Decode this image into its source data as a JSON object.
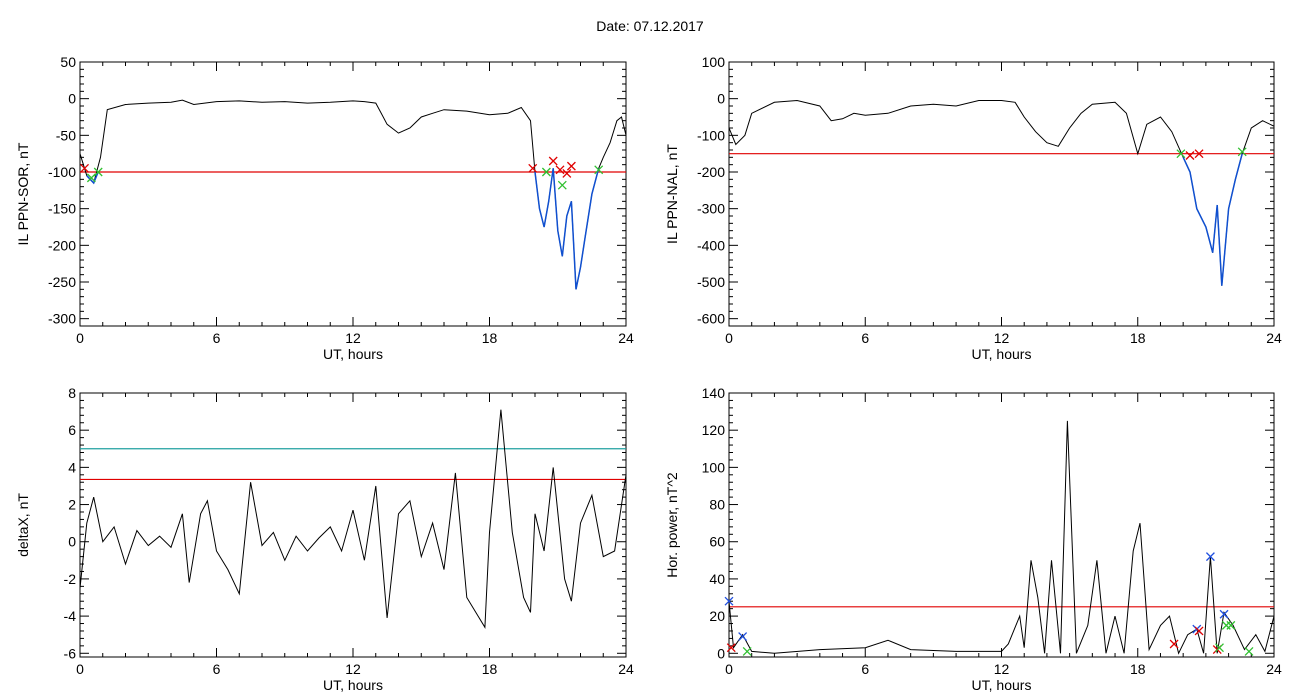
{
  "header": {
    "date_label": "Date:",
    "date_value": "07.12.2017"
  },
  "colors": {
    "trace": "#000000",
    "threshold": "#e00000",
    "cyan_threshold": "#20a0a0",
    "blue_segment": "#1050d0",
    "green_marker": "#30c030",
    "red_marker": "#e00000",
    "blue_marker": "#2050e0"
  },
  "chart_data": [
    {
      "id": "sor",
      "type": "line",
      "xlabel": "UT, hours",
      "ylabel": "IL PPN-SOR, nT",
      "xlim": [
        0,
        24
      ],
      "ylim": [
        -310,
        50
      ],
      "xticks": [
        0,
        6,
        12,
        18,
        24
      ],
      "yticks": [
        50,
        0,
        -50,
        -100,
        -150,
        -200,
        -250,
        -300
      ],
      "thresholds": [
        {
          "value": -100,
          "color": "red"
        }
      ],
      "points": [
        [
          0,
          -75
        ],
        [
          0.3,
          -105
        ],
        [
          0.6,
          -115
        ],
        [
          0.9,
          -80
        ],
        [
          1.2,
          -15
        ],
        [
          2,
          -8
        ],
        [
          3,
          -6
        ],
        [
          4,
          -5
        ],
        [
          4.5,
          -2
        ],
        [
          5,
          -8
        ],
        [
          6,
          -4
        ],
        [
          7,
          -3
        ],
        [
          8,
          -5
        ],
        [
          9,
          -4
        ],
        [
          10,
          -6
        ],
        [
          11,
          -5
        ],
        [
          12,
          -3
        ],
        [
          12.5,
          -4
        ],
        [
          13,
          -6
        ],
        [
          13.5,
          -35
        ],
        [
          14,
          -47
        ],
        [
          14.5,
          -40
        ],
        [
          15,
          -25
        ],
        [
          15.5,
          -20
        ],
        [
          16,
          -15
        ],
        [
          17,
          -17
        ],
        [
          18,
          -22
        ],
        [
          18.8,
          -20
        ],
        [
          19.4,
          -12
        ],
        [
          19.8,
          -30
        ],
        [
          20,
          -100
        ],
        [
          20.2,
          -150
        ],
        [
          20.4,
          -175
        ],
        [
          20.6,
          -140
        ],
        [
          20.8,
          -95
        ],
        [
          21,
          -180
        ],
        [
          21.2,
          -215
        ],
        [
          21.4,
          -160
        ],
        [
          21.6,
          -140
        ],
        [
          21.8,
          -260
        ],
        [
          22,
          -230
        ],
        [
          22.2,
          -190
        ],
        [
          22.5,
          -130
        ],
        [
          22.8,
          -95
        ],
        [
          23,
          -80
        ],
        [
          23.3,
          -60
        ],
        [
          23.6,
          -30
        ],
        [
          23.8,
          -25
        ],
        [
          24,
          -50
        ]
      ],
      "blue_segments": [
        [
          [
            20,
            -100
          ],
          [
            20.2,
            -150
          ],
          [
            20.4,
            -175
          ],
          [
            20.6,
            -140
          ],
          [
            20.8,
            -95
          ],
          [
            21,
            -180
          ],
          [
            21.2,
            -215
          ],
          [
            21.4,
            -160
          ],
          [
            21.6,
            -140
          ],
          [
            21.8,
            -260
          ],
          [
            22,
            -230
          ],
          [
            22.2,
            -190
          ],
          [
            22.5,
            -130
          ],
          [
            22.8,
            -95
          ]
        ],
        [
          [
            0.3,
            -105
          ],
          [
            0.6,
            -115
          ],
          [
            0.8,
            -100
          ]
        ]
      ],
      "markers": [
        {
          "x": 0.2,
          "y": -95,
          "symbol": "x",
          "color": "red"
        },
        {
          "x": 0.5,
          "y": -108,
          "symbol": "x",
          "color": "green"
        },
        {
          "x": 0.8,
          "y": -100,
          "symbol": "x",
          "color": "green"
        },
        {
          "x": 19.9,
          "y": -95,
          "symbol": "x",
          "color": "red"
        },
        {
          "x": 20.5,
          "y": -100,
          "symbol": "x",
          "color": "green"
        },
        {
          "x": 20.8,
          "y": -85,
          "symbol": "x",
          "color": "red"
        },
        {
          "x": 21.1,
          "y": -97,
          "symbol": "x",
          "color": "red"
        },
        {
          "x": 21.4,
          "y": -102,
          "symbol": "x",
          "color": "red"
        },
        {
          "x": 21.6,
          "y": -92,
          "symbol": "x",
          "color": "red"
        },
        {
          "x": 21.2,
          "y": -118,
          "symbol": "x",
          "color": "green"
        },
        {
          "x": 22.8,
          "y": -97,
          "symbol": "x",
          "color": "green"
        }
      ]
    },
    {
      "id": "nal",
      "type": "line",
      "xlabel": "UT, hours",
      "ylabel": "IL PPN-NAL, nT",
      "xlim": [
        0,
        24
      ],
      "ylim": [
        -620,
        100
      ],
      "xticks": [
        0,
        6,
        12,
        18,
        24
      ],
      "yticks": [
        100,
        0,
        -100,
        -200,
        -300,
        -400,
        -500,
        -600
      ],
      "thresholds": [
        {
          "value": -150,
          "color": "red"
        }
      ],
      "points": [
        [
          0,
          -80
        ],
        [
          0.3,
          -125
        ],
        [
          0.7,
          -100
        ],
        [
          1,
          -40
        ],
        [
          2,
          -10
        ],
        [
          3,
          -5
        ],
        [
          4,
          -20
        ],
        [
          4.5,
          -60
        ],
        [
          5,
          -55
        ],
        [
          5.5,
          -40
        ],
        [
          6,
          -45
        ],
        [
          7,
          -40
        ],
        [
          8,
          -20
        ],
        [
          9,
          -15
        ],
        [
          10,
          -20
        ],
        [
          11,
          -5
        ],
        [
          12,
          -5
        ],
        [
          12.6,
          -10
        ],
        [
          13,
          -50
        ],
        [
          13.5,
          -90
        ],
        [
          14,
          -120
        ],
        [
          14.5,
          -130
        ],
        [
          15,
          -80
        ],
        [
          15.5,
          -40
        ],
        [
          16,
          -15
        ],
        [
          17,
          -10
        ],
        [
          17.5,
          -40
        ],
        [
          18,
          -150
        ],
        [
          18.4,
          -70
        ],
        [
          19,
          -50
        ],
        [
          19.5,
          -90
        ],
        [
          20,
          -160
        ],
        [
          20.3,
          -200
        ],
        [
          20.6,
          -300
        ],
        [
          21,
          -350
        ],
        [
          21.3,
          -420
        ],
        [
          21.5,
          -290
        ],
        [
          21.7,
          -510
        ],
        [
          22,
          -300
        ],
        [
          22.3,
          -220
        ],
        [
          22.6,
          -150
        ],
        [
          23,
          -80
        ],
        [
          23.5,
          -60
        ],
        [
          24,
          -75
        ]
      ],
      "blue_segments": [
        [
          [
            20,
            -160
          ],
          [
            20.3,
            -200
          ],
          [
            20.6,
            -300
          ],
          [
            21,
            -350
          ],
          [
            21.3,
            -420
          ],
          [
            21.5,
            -290
          ],
          [
            21.7,
            -510
          ],
          [
            22,
            -300
          ],
          [
            22.3,
            -220
          ],
          [
            22.6,
            -150
          ]
        ]
      ],
      "markers": [
        {
          "x": 19.9,
          "y": -150,
          "symbol": "x",
          "color": "green"
        },
        {
          "x": 20.3,
          "y": -155,
          "symbol": "x",
          "color": "red"
        },
        {
          "x": 20.7,
          "y": -150,
          "symbol": "x",
          "color": "red"
        },
        {
          "x": 22.6,
          "y": -145,
          "symbol": "x",
          "color": "green"
        }
      ]
    },
    {
      "id": "deltax",
      "type": "line",
      "xlabel": "UT, hours",
      "ylabel": "deltaX, nT",
      "xlim": [
        0,
        24
      ],
      "ylim": [
        -6.2,
        8
      ],
      "xticks": [
        0,
        6,
        12,
        18,
        24
      ],
      "yticks": [
        8,
        6,
        4,
        2,
        0,
        -2,
        -4,
        -6
      ],
      "thresholds": [
        {
          "value": 5,
          "color": "cyan"
        },
        {
          "value": 3.35,
          "color": "red"
        }
      ],
      "points": [
        [
          0,
          -2.5
        ],
        [
          0.3,
          1
        ],
        [
          0.6,
          2.4
        ],
        [
          1,
          0
        ],
        [
          1.5,
          0.8
        ],
        [
          2,
          -1.2
        ],
        [
          2.5,
          0.6
        ],
        [
          3,
          -0.2
        ],
        [
          3.5,
          0.3
        ],
        [
          4,
          -0.3
        ],
        [
          4.5,
          1.5
        ],
        [
          4.8,
          -2.2
        ],
        [
          5.3,
          1.5
        ],
        [
          5.6,
          2.2
        ],
        [
          6,
          -0.5
        ],
        [
          6.5,
          -1.5
        ],
        [
          7,
          -2.8
        ],
        [
          7.5,
          3.2
        ],
        [
          8,
          -0.2
        ],
        [
          8.5,
          0.5
        ],
        [
          9,
          -1
        ],
        [
          9.5,
          0.3
        ],
        [
          10,
          -0.5
        ],
        [
          10.5,
          0.2
        ],
        [
          11,
          0.8
        ],
        [
          11.5,
          -0.5
        ],
        [
          12,
          1.7
        ],
        [
          12.5,
          -1
        ],
        [
          13,
          3
        ],
        [
          13.5,
          -4.1
        ],
        [
          14,
          1.5
        ],
        [
          14.5,
          2.2
        ],
        [
          15,
          -0.8
        ],
        [
          15.5,
          1
        ],
        [
          16,
          -1.5
        ],
        [
          16.5,
          3.7
        ],
        [
          17,
          -3
        ],
        [
          17.5,
          -4
        ],
        [
          17.8,
          -4.6
        ],
        [
          18,
          0.5
        ],
        [
          18.5,
          7.1
        ],
        [
          19,
          0.5
        ],
        [
          19.5,
          -3
        ],
        [
          19.8,
          -3.8
        ],
        [
          20,
          1.5
        ],
        [
          20.4,
          -0.5
        ],
        [
          20.8,
          4
        ],
        [
          21.3,
          -2
        ],
        [
          21.6,
          -3.2
        ],
        [
          22,
          1
        ],
        [
          22.5,
          2.5
        ],
        [
          23,
          -0.8
        ],
        [
          23.5,
          -0.5
        ],
        [
          24,
          3.6
        ]
      ],
      "markers": []
    },
    {
      "id": "power",
      "type": "line",
      "xlabel": "UT, hours",
      "ylabel": "Hor. power, nT^2",
      "xlim": [
        0,
        24
      ],
      "ylim": [
        -2,
        140
      ],
      "xticks": [
        0,
        6,
        12,
        18,
        24
      ],
      "yticks": [
        140,
        120,
        100,
        80,
        60,
        40,
        20,
        0
      ],
      "thresholds": [
        {
          "value": 25,
          "color": "red"
        }
      ],
      "points": [
        [
          0,
          28
        ],
        [
          0.2,
          3
        ],
        [
          0.6,
          10
        ],
        [
          1,
          1
        ],
        [
          2,
          0
        ],
        [
          4,
          2
        ],
        [
          6,
          3
        ],
        [
          7,
          7
        ],
        [
          8,
          2
        ],
        [
          10,
          1
        ],
        [
          12,
          1
        ],
        [
          12.3,
          5
        ],
        [
          12.8,
          20
        ],
        [
          13,
          3
        ],
        [
          13.3,
          50
        ],
        [
          13.6,
          30
        ],
        [
          13.9,
          0
        ],
        [
          14.2,
          50
        ],
        [
          14.6,
          0
        ],
        [
          14.9,
          125
        ],
        [
          15.3,
          0
        ],
        [
          15.8,
          15
        ],
        [
          16.2,
          50
        ],
        [
          16.6,
          0
        ],
        [
          17,
          20
        ],
        [
          17.4,
          0
        ],
        [
          17.8,
          55
        ],
        [
          18.1,
          70
        ],
        [
          18.5,
          2
        ],
        [
          19,
          15
        ],
        [
          19.4,
          20
        ],
        [
          19.8,
          0
        ],
        [
          20.2,
          10
        ],
        [
          20.6,
          13
        ],
        [
          20.9,
          0
        ],
        [
          21.2,
          52
        ],
        [
          21.5,
          0
        ],
        [
          21.8,
          22
        ],
        [
          22.2,
          15
        ],
        [
          22.7,
          2
        ],
        [
          23.2,
          10
        ],
        [
          23.6,
          1
        ],
        [
          24,
          20
        ]
      ],
      "markers": [
        {
          "x": 0,
          "y": 28,
          "symbol": "x",
          "color": "blue"
        },
        {
          "x": 0.1,
          "y": 3,
          "symbol": "x",
          "color": "red"
        },
        {
          "x": 0.6,
          "y": 9,
          "symbol": "x",
          "color": "blue"
        },
        {
          "x": 0.8,
          "y": 1,
          "symbol": "x",
          "color": "green"
        },
        {
          "x": 19.6,
          "y": 5,
          "symbol": "x",
          "color": "red"
        },
        {
          "x": 20.6,
          "y": 13,
          "symbol": "x",
          "color": "blue"
        },
        {
          "x": 20.7,
          "y": 12,
          "symbol": "x",
          "color": "red"
        },
        {
          "x": 21.2,
          "y": 52,
          "symbol": "x",
          "color": "blue"
        },
        {
          "x": 21.5,
          "y": 2,
          "symbol": "x",
          "color": "red"
        },
        {
          "x": 21.6,
          "y": 3,
          "symbol": "x",
          "color": "green"
        },
        {
          "x": 21.8,
          "y": 21,
          "symbol": "x",
          "color": "blue"
        },
        {
          "x": 21.9,
          "y": 15,
          "symbol": "x",
          "color": "green"
        },
        {
          "x": 22.1,
          "y": 15,
          "symbol": "x",
          "color": "green"
        },
        {
          "x": 22.9,
          "y": 1,
          "symbol": "x",
          "color": "green"
        }
      ]
    }
  ]
}
